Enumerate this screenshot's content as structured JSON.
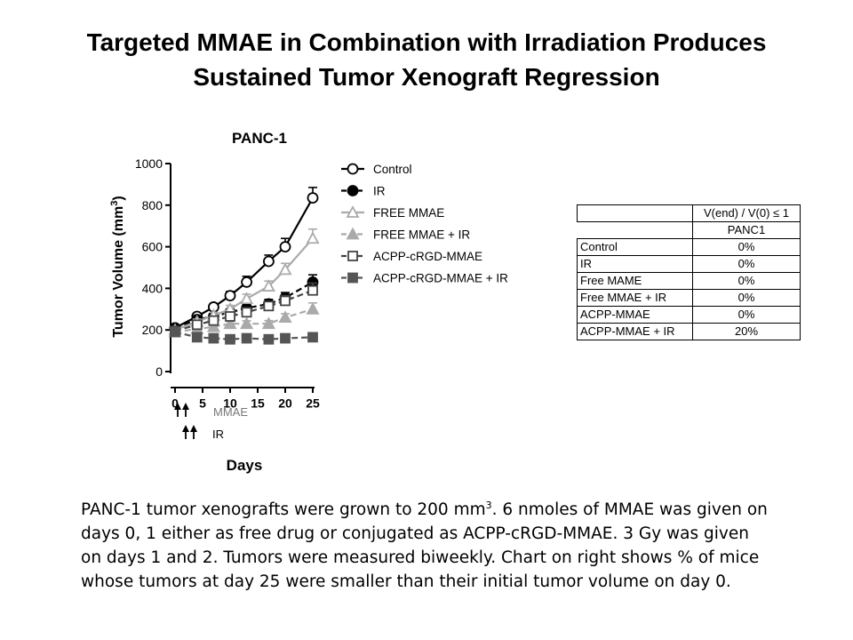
{
  "slide": {
    "title_line1": "Targeted MMAE in Combination with Irradiation Produces",
    "title_line2": "Sustained Tumor Xenograft Regression"
  },
  "chart_data": {
    "type": "line",
    "title": "PANC-1",
    "xlabel": "Days",
    "ylabel": "Tumor Volume (mm",
    "ylabel_sup": "3",
    "ylabel_tail": ")",
    "xlim": [
      0,
      25
    ],
    "ylim": [
      0,
      1000
    ],
    "xticks": [
      0,
      5,
      10,
      15,
      20,
      25
    ],
    "yticks": [
      0,
      200,
      400,
      600,
      800,
      1000
    ],
    "legend_position": "right",
    "series": [
      {
        "name": "Control",
        "marker": "circle-open",
        "color": "#000000",
        "dash": "solid",
        "x": [
          0,
          4,
          7,
          10,
          13,
          17,
          20,
          25
        ],
        "y": [
          210,
          265,
          310,
          365,
          430,
          530,
          600,
          835
        ],
        "err": [
          12,
          15,
          15,
          20,
          28,
          30,
          40,
          50
        ]
      },
      {
        "name": "IR",
        "marker": "circle-filled",
        "color": "#000000",
        "dash": "dashed",
        "x": [
          0,
          4,
          7,
          10,
          13,
          17,
          20,
          25
        ],
        "y": [
          210,
          250,
          265,
          285,
          305,
          325,
          355,
          430
        ],
        "err": [
          10,
          12,
          12,
          14,
          16,
          22,
          25,
          35
        ]
      },
      {
        "name": "FREE MMAE",
        "marker": "triangle-open",
        "color": "#aaaaaa",
        "dash": "solid",
        "x": [
          0,
          4,
          7,
          10,
          13,
          17,
          20,
          25
        ],
        "y": [
          200,
          240,
          270,
          300,
          350,
          410,
          490,
          640
        ],
        "err": [
          10,
          12,
          15,
          18,
          22,
          25,
          30,
          45
        ]
      },
      {
        "name": "FREE MMAE + IR",
        "marker": "triangle-filled",
        "color": "#aaaaaa",
        "dash": "dashed",
        "x": [
          0,
          4,
          7,
          10,
          13,
          17,
          20,
          25
        ],
        "y": [
          190,
          205,
          215,
          230,
          230,
          230,
          260,
          300
        ],
        "err": [
          10,
          12,
          12,
          12,
          14,
          15,
          18,
          30
        ]
      },
      {
        "name": "ACPP-cRGD-MMAE",
        "marker": "square-open",
        "color": "#444444",
        "dash": "dashed",
        "x": [
          0,
          4,
          7,
          10,
          13,
          17,
          20,
          25
        ],
        "y": [
          195,
          225,
          245,
          265,
          285,
          315,
          340,
          390
        ],
        "err": [
          10,
          12,
          14,
          15,
          18,
          20,
          25,
          35
        ]
      },
      {
        "name": "ACPP-cRGD-MMAE + IR",
        "marker": "square-filled",
        "color": "#555555",
        "dash": "dashed",
        "x": [
          0,
          4,
          7,
          10,
          13,
          17,
          20,
          25
        ],
        "y": [
          190,
          165,
          160,
          155,
          160,
          155,
          160,
          165
        ],
        "err": [
          8,
          8,
          8,
          8,
          8,
          8,
          8,
          8
        ]
      }
    ],
    "annotations": {
      "mmae_label": "MMAE",
      "ir_label": "IR",
      "mmae_days": [
        0,
        1
      ],
      "ir_days": [
        1,
        2
      ]
    }
  },
  "table": {
    "header": "V(end) / V(0) ≤ 1",
    "subheader": "PANC1",
    "rows": [
      {
        "label": "Control",
        "value": "0%"
      },
      {
        "label": "IR",
        "value": "0%"
      },
      {
        "label": "Free MAME",
        "value": "0%"
      },
      {
        "label": "Free MMAE + IR",
        "value": "0%"
      },
      {
        "label": "ACPP-MMAE",
        "value": "0%"
      },
      {
        "label": "ACPP-MMAE + IR",
        "value": "20%"
      }
    ]
  },
  "caption": {
    "part1": "PANC-1 tumor xenografts were grown to 200 mm",
    "sup": "3",
    "part2": ". 6 nmoles of MMAE was given on days 0, 1 either as free drug or conjugated as ACPP-cRGD-MMAE. 3 Gy was given on days 1 and 2. Tumors were measured biweekly. Chart on right shows % of mice whose tumors at day 25 were smaller than their initial tumor volume on day 0."
  }
}
